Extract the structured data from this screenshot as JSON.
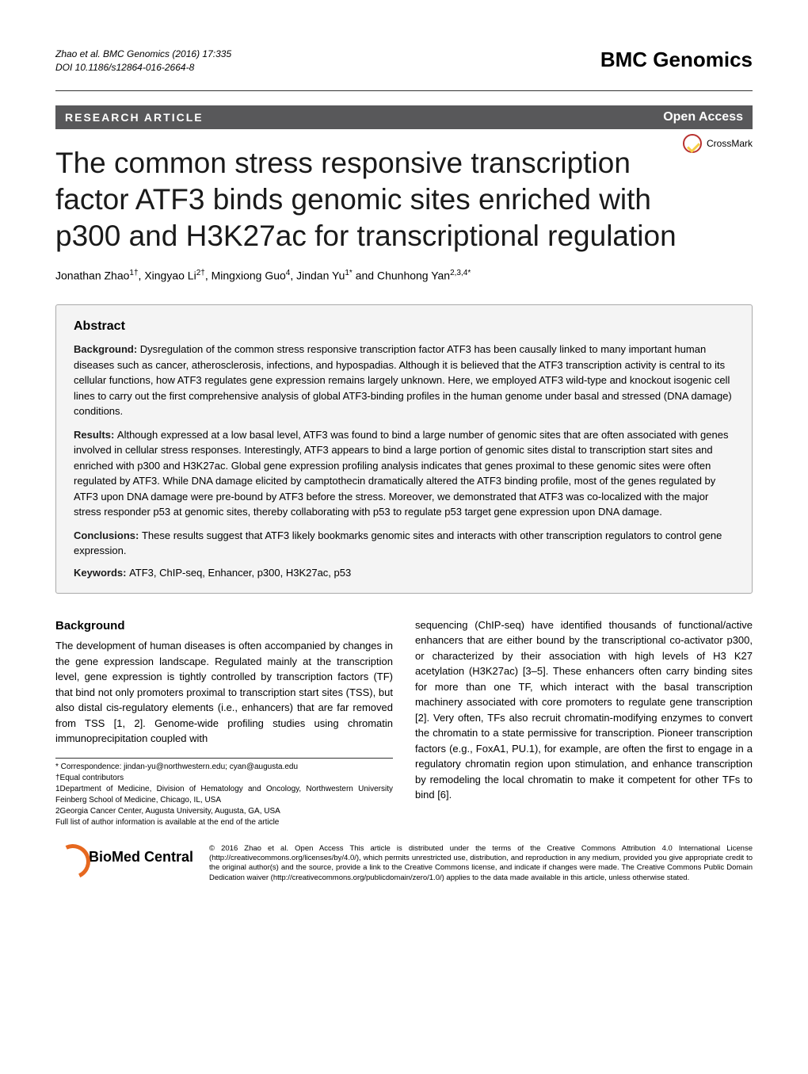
{
  "header": {
    "running_authors": "Zhao et al. BMC Genomics (2016) 17:335",
    "doi": "DOI 10.1186/s12864-016-2664-8",
    "journal": "BMC Genomics"
  },
  "bar": {
    "article_type": "RESEARCH ARTICLE",
    "open_access": "Open Access"
  },
  "crossmark": {
    "label": "CrossMark"
  },
  "title": "The common stress responsive transcription factor ATF3 binds genomic sites enriched with p300 and H3K27ac for transcriptional regulation",
  "authors": {
    "a1": "Jonathan Zhao",
    "s1": "1†",
    "a2": "Xingyao Li",
    "s2": "2†",
    "a3": "Mingxiong Guo",
    "s3": "4",
    "a4": "Jindan Yu",
    "s4": "1*",
    "a5": "Chunhong Yan",
    "s5": "2,3,4*",
    "and": " and "
  },
  "abstract": {
    "head": "Abstract",
    "bg_label": "Background: ",
    "bg": "Dysregulation of the common stress responsive transcription factor ATF3 has been causally linked to many important human diseases such as cancer, atherosclerosis, infections, and hypospadias. Although it is believed that the ATF3 transcription activity is central to its cellular functions, how ATF3 regulates gene expression remains largely unknown. Here, we employed ATF3 wild-type and knockout isogenic cell lines to carry out the first comprehensive analysis of global ATF3-binding profiles in the human genome under basal and stressed (DNA damage) conditions.",
    "res_label": "Results: ",
    "res": "Although expressed at a low basal level, ATF3 was found to bind a large number of genomic sites that are often associated with genes involved in cellular stress responses. Interestingly, ATF3 appears to bind a large portion of genomic sites distal to transcription start sites and enriched with p300 and H3K27ac. Global gene expression profiling analysis indicates that genes proximal to these genomic sites were often regulated by ATF3. While DNA damage elicited by camptothecin dramatically altered the ATF3 binding profile, most of the genes regulated by ATF3 upon DNA damage were pre-bound by ATF3 before the stress. Moreover, we demonstrated that ATF3 was co-localized with the major stress responder p53 at genomic sites, thereby collaborating with p53 to regulate p53 target gene expression upon DNA damage.",
    "con_label": "Conclusions: ",
    "con": "These results suggest that ATF3 likely bookmarks genomic sites and interacts with other transcription regulators to control gene expression.",
    "kw_label": "Keywords: ",
    "kw": "ATF3, ChIP-seq, Enhancer, p300, H3K27ac, p53"
  },
  "body": {
    "section_head": "Background",
    "col1": "The development of human diseases is often accompanied by changes in the gene expression landscape. Regulated mainly at the transcription level, gene expression is tightly controlled by transcription factors (TF) that bind not only promoters proximal to transcription start sites (TSS), but also distal cis-regulatory elements (i.e., enhancers) that are far removed from TSS [1, 2]. Genome-wide profiling studies using chromatin immunoprecipitation coupled with",
    "col2": "sequencing (ChIP-seq) have identified thousands of functional/active enhancers that are either bound by the transcriptional co-activator p300, or characterized by their association with high levels of H3 K27 acetylation (H3K27ac) [3–5]. These enhancers often carry binding sites for more than one TF, which interact with the basal transcription machinery associated with core promoters to regulate gene transcription [2]. Very often, TFs also recruit chromatin-modifying enzymes to convert the chromatin to a state permissive for transcription. Pioneer transcription factors (e.g., FoxA1, PU.1), for example, are often the first to engage in a regulatory chromatin region upon stimulation, and enhance transcription by remodeling the local chromatin to make it competent for other TFs to bind [6]."
  },
  "footnotes": {
    "correspondence": "* Correspondence: jindan-yu@northwestern.edu; cyan@augusta.edu",
    "equal": "†Equal contributors",
    "aff1": "1Department of Medicine, Division of Hematology and Oncology, Northwestern University Feinberg School of Medicine, Chicago, IL, USA",
    "aff2": "2Georgia Cancer Center, Augusta University, Augusta, GA, USA",
    "full": "Full list of author information is available at the end of the article"
  },
  "footer": {
    "logo_bio": "BioMed",
    "logo_central": " Central",
    "license": "© 2016 Zhao et al. Open Access This article is distributed under the terms of the Creative Commons Attribution 4.0 International License (http://creativecommons.org/licenses/by/4.0/), which permits unrestricted use, distribution, and reproduction in any medium, provided you give appropriate credit to the original author(s) and the source, provide a link to the Creative Commons license, and indicate if changes were made. The Creative Commons Public Domain Dedication waiver (http://creativecommons.org/publicdomain/zero/1.0/) applies to the data made available in this article, unless otherwise stated."
  },
  "style": {
    "accent_bar_bg": "#58585a",
    "abstract_bg": "#f4f4f4",
    "crossmark_ring": "#b8312f",
    "bmc_orange": "#e6681f"
  }
}
